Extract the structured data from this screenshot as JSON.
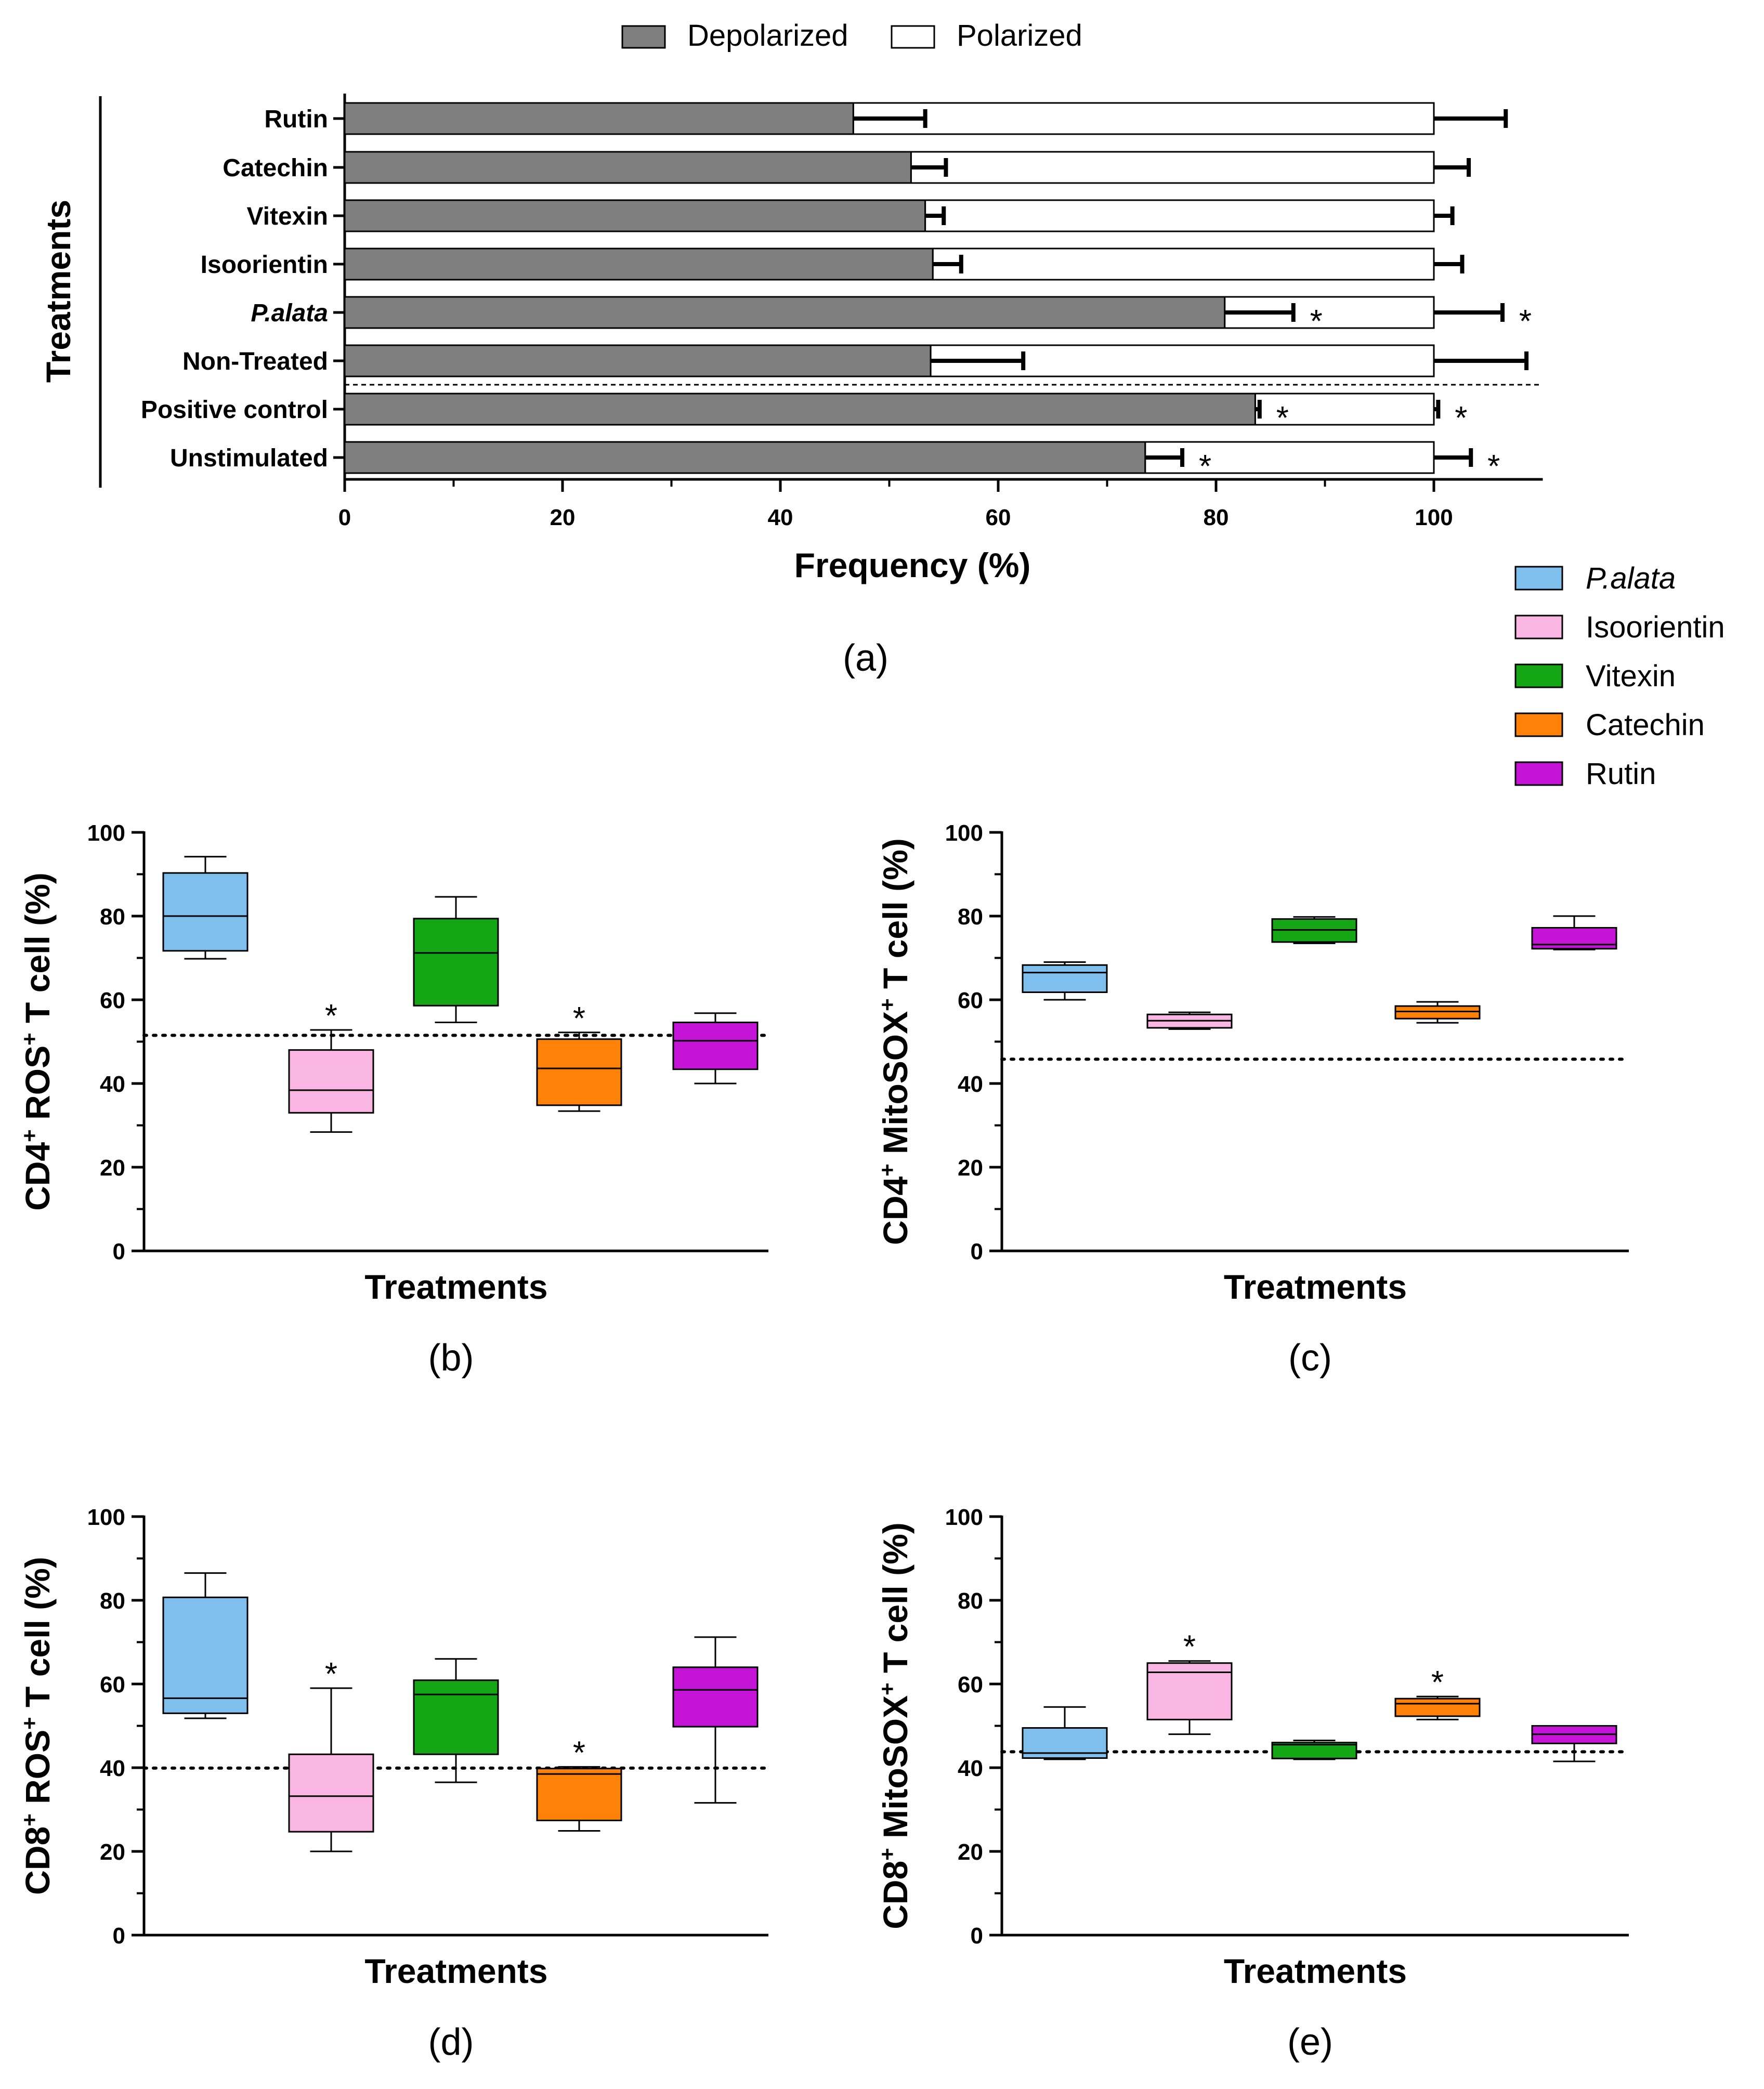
{
  "chart_data": [
    {
      "id": "a",
      "type": "bar",
      "orientation": "horizontal",
      "stacked": true,
      "panel_label": "(a)",
      "xlabel": "Frequency (%)",
      "ylabel": "Treatments",
      "xlim": [
        0,
        110
      ],
      "xticks": [
        "0",
        "20",
        "40",
        "60",
        "80",
        "100"
      ],
      "legend": {
        "position": "top-center",
        "entries": [
          "Depolarized",
          "Polarized"
        ]
      },
      "colors": {
        "Depolarized": "#7f7f7f",
        "Polarized": "#ffffff"
      },
      "categories": [
        "Rutin",
        "Catechin",
        "Vitexin",
        "Isoorientin",
        "P.alata",
        "Non-Treated",
        "Positive control",
        "Unstimulated"
      ],
      "series": [
        {
          "name": "Depolarized",
          "values": [
            46.7,
            52.0,
            53.3,
            54.0,
            80.8,
            53.8,
            83.6,
            73.5
          ],
          "error": [
            6.6,
            3.2,
            1.7,
            2.6,
            6.3,
            8.5,
            0.4,
            3.4
          ],
          "significant": [
            false,
            false,
            false,
            false,
            true,
            false,
            true,
            true
          ]
        },
        {
          "name": "Polarized",
          "values": [
            53.3,
            48.0,
            46.7,
            46.0,
            19.2,
            46.2,
            16.4,
            26.5
          ],
          "error": [
            6.6,
            3.2,
            1.7,
            2.6,
            6.3,
            8.5,
            0.4,
            3.4
          ],
          "significant": [
            false,
            false,
            false,
            false,
            true,
            false,
            true,
            true
          ]
        }
      ],
      "significance_marker": "*"
    },
    {
      "id": "b",
      "type": "box",
      "panel_label": "(b)",
      "xlabel": "Treatments",
      "ylabel_parts": [
        "CD4",
        "+",
        " ROS",
        "+",
        " T cell (%)"
      ],
      "ylim": [
        0,
        100
      ],
      "yticks": [
        "0",
        "20",
        "40",
        "60",
        "80",
        "100"
      ],
      "reference_line": 51.5,
      "groups": [
        {
          "name": "P.alata",
          "min": 69.8,
          "q1": 71.7,
          "median": 80.0,
          "q3": 90.3,
          "max": 94.2,
          "significant": false
        },
        {
          "name": "Isoorientin",
          "min": 28.4,
          "q1": 33.0,
          "median": 38.4,
          "q3": 48.0,
          "max": 52.8,
          "significant": true
        },
        {
          "name": "Vitexin",
          "min": 54.6,
          "q1": 58.6,
          "median": 71.2,
          "q3": 79.4,
          "max": 84.6,
          "significant": false
        },
        {
          "name": "Catechin",
          "min": 33.4,
          "q1": 34.8,
          "median": 43.6,
          "q3": 50.6,
          "max": 52.2,
          "significant": true
        },
        {
          "name": "Rutin",
          "min": 40.0,
          "q1": 43.4,
          "median": 50.2,
          "q3": 54.6,
          "max": 56.8,
          "significant": false
        }
      ]
    },
    {
      "id": "c",
      "type": "box",
      "panel_label": "(c)",
      "xlabel": "Treatments",
      "ylabel_parts": [
        "CD4",
        "+",
        " MitoSOX",
        "+",
        " T cell (%)"
      ],
      "ylim": [
        0,
        100
      ],
      "yticks": [
        "0",
        "20",
        "40",
        "60",
        "80",
        "100"
      ],
      "reference_line": 45.8,
      "groups": [
        {
          "name": "P.alata",
          "min": 60.0,
          "q1": 61.8,
          "median": 66.5,
          "q3": 68.3,
          "max": 69.0,
          "significant": false
        },
        {
          "name": "Isoorientin",
          "min": 53.0,
          "q1": 53.3,
          "median": 55.0,
          "q3": 56.5,
          "max": 57.0,
          "significant": false
        },
        {
          "name": "Vitexin",
          "min": 73.5,
          "q1": 73.8,
          "median": 76.7,
          "q3": 79.3,
          "max": 79.8,
          "significant": false
        },
        {
          "name": "Catechin",
          "min": 54.5,
          "q1": 55.5,
          "median": 57.2,
          "q3": 58.5,
          "max": 59.5,
          "significant": false
        },
        {
          "name": "Rutin",
          "min": 72.0,
          "q1": 72.2,
          "median": 73.2,
          "q3": 77.2,
          "max": 80.0,
          "significant": false
        }
      ]
    },
    {
      "id": "d",
      "type": "box",
      "panel_label": "(d)",
      "xlabel": "Treatments",
      "ylabel_parts": [
        "CD8",
        "+",
        " ROS",
        "+",
        " T cell (%)"
      ],
      "ylim": [
        0,
        100
      ],
      "yticks": [
        "0",
        "20",
        "40",
        "60",
        "80",
        "100"
      ],
      "reference_line": 39.9,
      "groups": [
        {
          "name": "P.alata",
          "min": 51.8,
          "q1": 53.0,
          "median": 56.6,
          "q3": 80.7,
          "max": 86.5,
          "significant": false
        },
        {
          "name": "Isoorientin",
          "min": 20.0,
          "q1": 24.7,
          "median": 33.2,
          "q3": 43.2,
          "max": 59.0,
          "significant": true
        },
        {
          "name": "Vitexin",
          "min": 36.5,
          "q1": 43.2,
          "median": 57.5,
          "q3": 60.9,
          "max": 66.0,
          "significant": false
        },
        {
          "name": "Catechin",
          "min": 24.9,
          "q1": 27.4,
          "median": 38.5,
          "q3": 39.8,
          "max": 40.2,
          "significant": true
        },
        {
          "name": "Rutin",
          "min": 31.6,
          "q1": 49.8,
          "median": 58.6,
          "q3": 64.0,
          "max": 71.2,
          "significant": false
        }
      ]
    },
    {
      "id": "e",
      "type": "box",
      "panel_label": "(e)",
      "xlabel": "Treatments",
      "ylabel_parts": [
        "CD8",
        "+",
        " MitoSOX",
        "+",
        " T cell (%)"
      ],
      "ylim": [
        0,
        100
      ],
      "yticks": [
        "0",
        "20",
        "40",
        "60",
        "80",
        "100"
      ],
      "reference_line": 43.8,
      "groups": [
        {
          "name": "P.alata",
          "min": 42.0,
          "q1": 42.3,
          "median": 43.5,
          "q3": 49.5,
          "max": 54.5,
          "significant": false
        },
        {
          "name": "Isoorientin",
          "min": 48.0,
          "q1": 51.5,
          "median": 62.8,
          "q3": 65.0,
          "max": 65.5,
          "significant": true
        },
        {
          "name": "Vitexin",
          "min": 42.0,
          "q1": 42.2,
          "median": 45.5,
          "q3": 46.0,
          "max": 46.5,
          "significant": false
        },
        {
          "name": "Catechin",
          "min": 51.5,
          "q1": 52.3,
          "median": 55.3,
          "q3": 56.5,
          "max": 57.0,
          "significant": true
        },
        {
          "name": "Rutin",
          "min": 41.5,
          "q1": 45.8,
          "median": 48.0,
          "q3": 50.0,
          "max": 50.0,
          "significant": false
        }
      ]
    }
  ],
  "box_legend": {
    "position": "right",
    "entries": [
      {
        "name": "P.alata",
        "color": "#7fbfee",
        "italic": true
      },
      {
        "name": "Isoorientin",
        "color": "#f9b6e2",
        "italic": false
      },
      {
        "name": "Vitexin",
        "color": "#14a614",
        "italic": false
      },
      {
        "name": "Catechin",
        "color": "#ff8208",
        "italic": false
      },
      {
        "name": "Rutin",
        "color": "#c613d8",
        "italic": false
      }
    ]
  }
}
